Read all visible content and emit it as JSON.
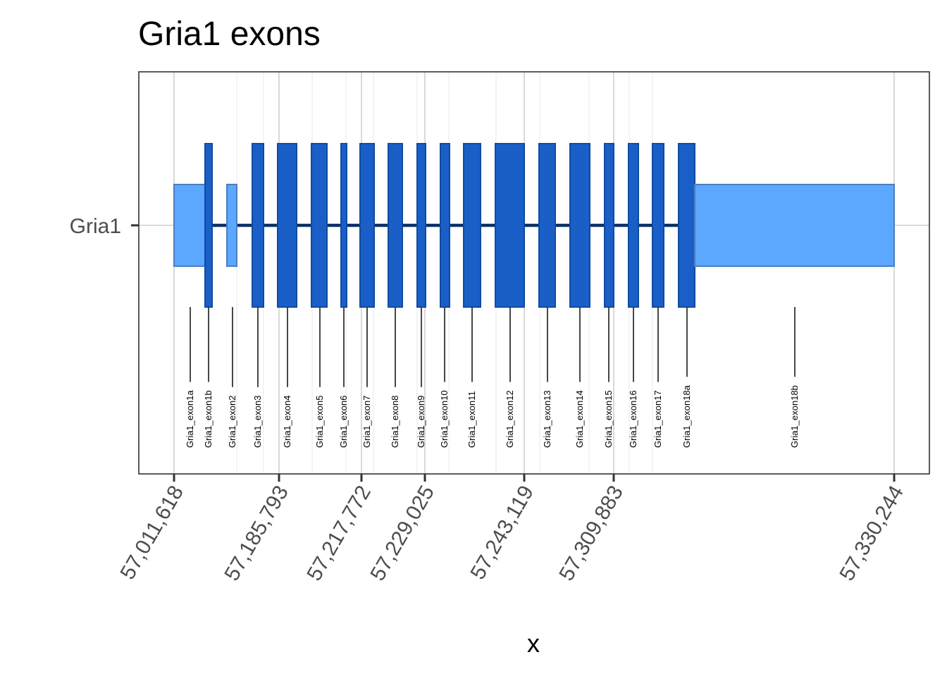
{
  "chart_data": {
    "type": "gene-structure",
    "title": "Gria1 exons",
    "xlabel": "x",
    "ylabel": "",
    "gene": "Gria1",
    "x_ticks": [
      "57,011,618",
      "57,185,793",
      "57,217,772",
      "57,229,025",
      "57,243,119",
      "57,309,883",
      "57,330,244"
    ],
    "grid": true,
    "colors": {
      "utr": "#5ca7ff",
      "utr_border": "#4a7fc0",
      "cds": "#1a5fc8",
      "cds_border": "#0f4ba0",
      "intron": "#0b2f66",
      "grid": "#d9d9d9",
      "label_line": "#333333"
    },
    "exons": [
      {
        "name": "Gria1_exon1a",
        "kind": "utr"
      },
      {
        "name": "Gria1_exon1b",
        "kind": "cds"
      },
      {
        "name": "Gria1_exon2",
        "kind": "utr"
      },
      {
        "name": "Gria1_exon3",
        "kind": "cds"
      },
      {
        "name": "Gria1_exon4",
        "kind": "cds"
      },
      {
        "name": "Gria1_exon5",
        "kind": "cds"
      },
      {
        "name": "Gria1_exon6",
        "kind": "cds"
      },
      {
        "name": "Gria1_exon7",
        "kind": "cds"
      },
      {
        "name": "Gria1_exon8",
        "kind": "cds"
      },
      {
        "name": "Gria1_exon9",
        "kind": "cds"
      },
      {
        "name": "Gria1_exon10",
        "kind": "cds"
      },
      {
        "name": "Gria1_exon11",
        "kind": "cds"
      },
      {
        "name": "Gria1_exon12",
        "kind": "cds"
      },
      {
        "name": "Gria1_exon13",
        "kind": "cds"
      },
      {
        "name": "Gria1_exon14",
        "kind": "cds"
      },
      {
        "name": "Gria1_exon15",
        "kind": "cds"
      },
      {
        "name": "Gria1_exon16",
        "kind": "cds"
      },
      {
        "name": "Gria1_exon17",
        "kind": "cds"
      },
      {
        "name": "Gria1_exon18a",
        "kind": "cds"
      },
      {
        "name": "Gria1_exon18b",
        "kind": "utr"
      }
    ]
  }
}
